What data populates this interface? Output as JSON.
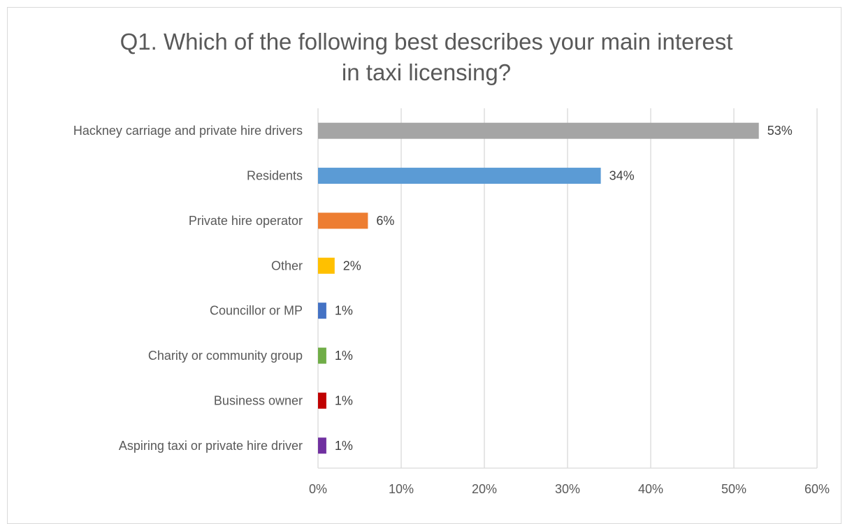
{
  "chart_data": {
    "type": "bar",
    "orientation": "horizontal",
    "title": "Q1. Which of the following best describes your main interest in taxi licensing?",
    "title_lines": [
      "Q1. Which of the following best describes your main interest",
      "in taxi licensing?"
    ],
    "xlabel": "",
    "ylabel": "",
    "categories": [
      "Hackney carriage and private hire drivers",
      "Residents",
      "Private hire operator",
      "Other",
      "Councillor or MP",
      "Charity or community group",
      "Business owner",
      "Aspiring taxi or private hire driver"
    ],
    "values": [
      53,
      34,
      6,
      2,
      1,
      1,
      1,
      1
    ],
    "value_labels": [
      "53%",
      "34%",
      "6%",
      "2%",
      "1%",
      "1%",
      "1%",
      "1%"
    ],
    "colors": [
      "#a5a5a5",
      "#5b9bd5",
      "#ed7d31",
      "#ffc000",
      "#4472c4",
      "#70ad47",
      "#c00000",
      "#7030a0"
    ],
    "xlim": [
      0,
      60
    ],
    "xticks": [
      0,
      10,
      20,
      30,
      40,
      50,
      60
    ],
    "xtick_labels": [
      "0%",
      "10%",
      "20%",
      "30%",
      "40%",
      "50%",
      "60%"
    ],
    "grid": true,
    "legend": "none"
  }
}
